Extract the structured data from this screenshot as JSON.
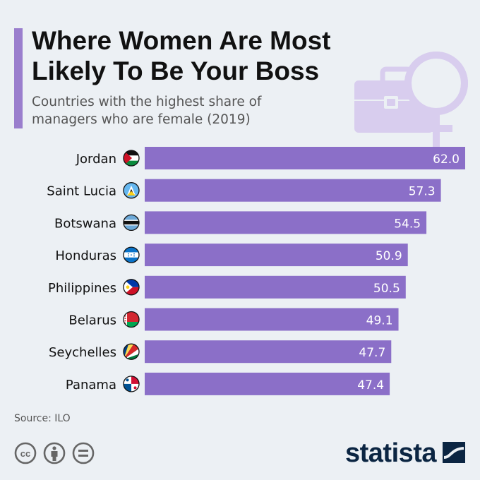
{
  "header": {
    "title_line1": "Where Women Are Most",
    "title_line2": "Likely To Be Your Boss",
    "subtitle_line1": "Countries with the highest share of",
    "subtitle_line2": "managers who are female (2019)"
  },
  "chart_data": {
    "type": "bar",
    "orientation": "horizontal",
    "categories": [
      "Jordan",
      "Saint Lucia",
      "Botswana",
      "Honduras",
      "Philippines",
      "Belarus",
      "Seychelles",
      "Panama"
    ],
    "values": [
      62.0,
      57.3,
      54.5,
      50.9,
      50.5,
      49.1,
      47.7,
      47.4
    ],
    "value_labels": [
      "62.0",
      "57.3",
      "54.5",
      "50.9",
      "50.5",
      "49.1",
      "47.7",
      "47.4"
    ],
    "title": "Where Women Are Most Likely To Be Your Boss",
    "subtitle": "Countries with the highest share of managers who are female (2019)",
    "bar_color": "#8b6fc8",
    "grid": false,
    "legend": "none"
  },
  "flags": [
    "jordan-flag-icon",
    "saint-lucia-flag-icon",
    "botswana-flag-icon",
    "honduras-flag-icon",
    "philippines-flag-icon",
    "belarus-flag-icon",
    "seychelles-flag-icon",
    "panama-flag-icon"
  ],
  "footer": {
    "source": "Source: ILO",
    "brand": "statista",
    "license_icons": [
      "cc-icon",
      "attribution-icon",
      "no-derivatives-icon"
    ]
  }
}
